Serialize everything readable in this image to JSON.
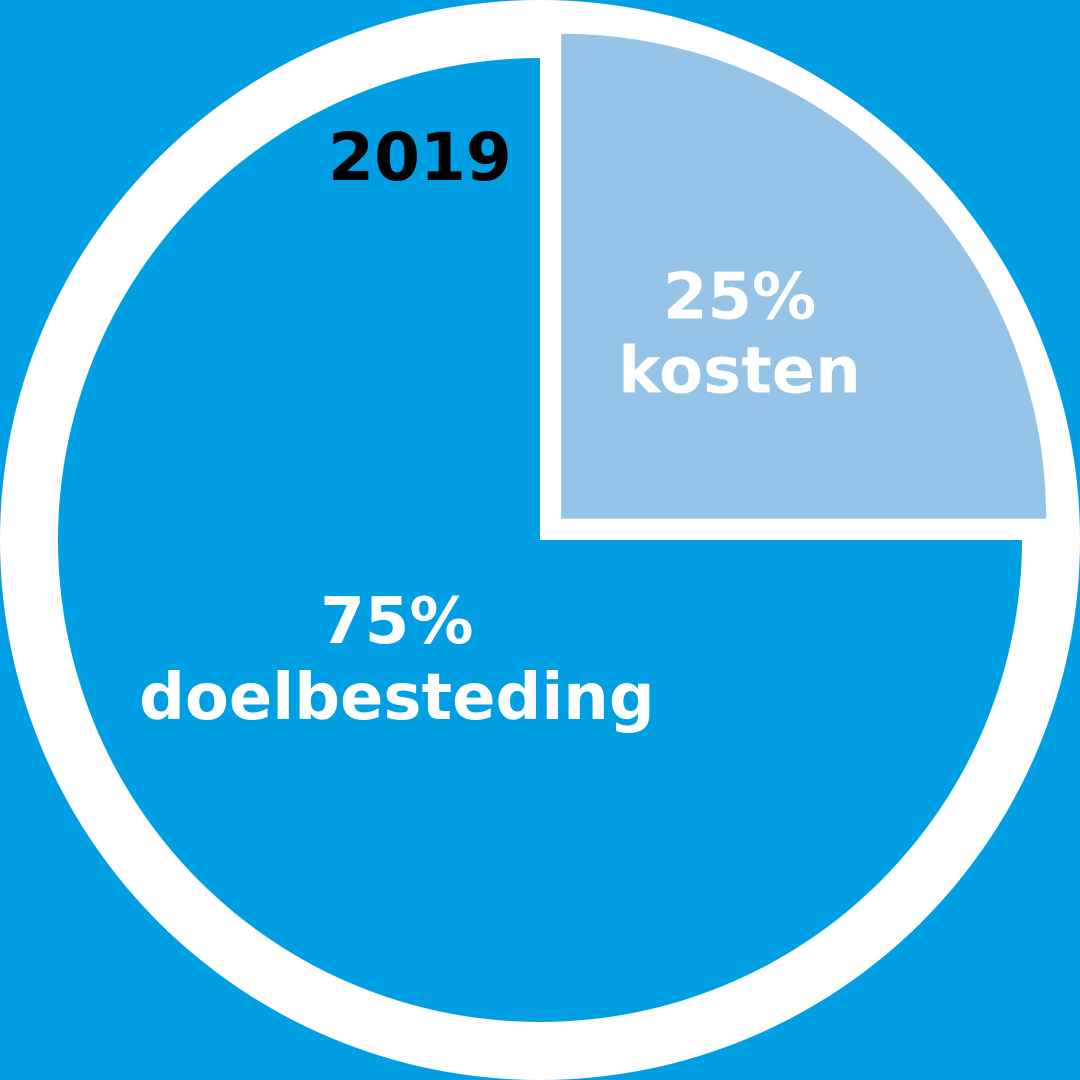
{
  "colors": {
    "background": "#009fe3",
    "ring": "#ffffff",
    "main_slice": "#009fe3",
    "secondary_slice": "#95c4e6",
    "year_text": "#000000",
    "slice_text": "#ffffff"
  },
  "chart_data": {
    "type": "pie",
    "title": "2019",
    "categories": [
      "kosten",
      "doelbesteding"
    ],
    "values": [
      25,
      75
    ],
    "value_labels": [
      "25%",
      "75%"
    ],
    "slices": [
      {
        "label": "kosten",
        "value": 25,
        "value_label": "25%",
        "color": "#95c4e6"
      },
      {
        "label": "doelbesteding",
        "value": 75,
        "value_label": "75%",
        "color": "#009fe3"
      }
    ]
  }
}
